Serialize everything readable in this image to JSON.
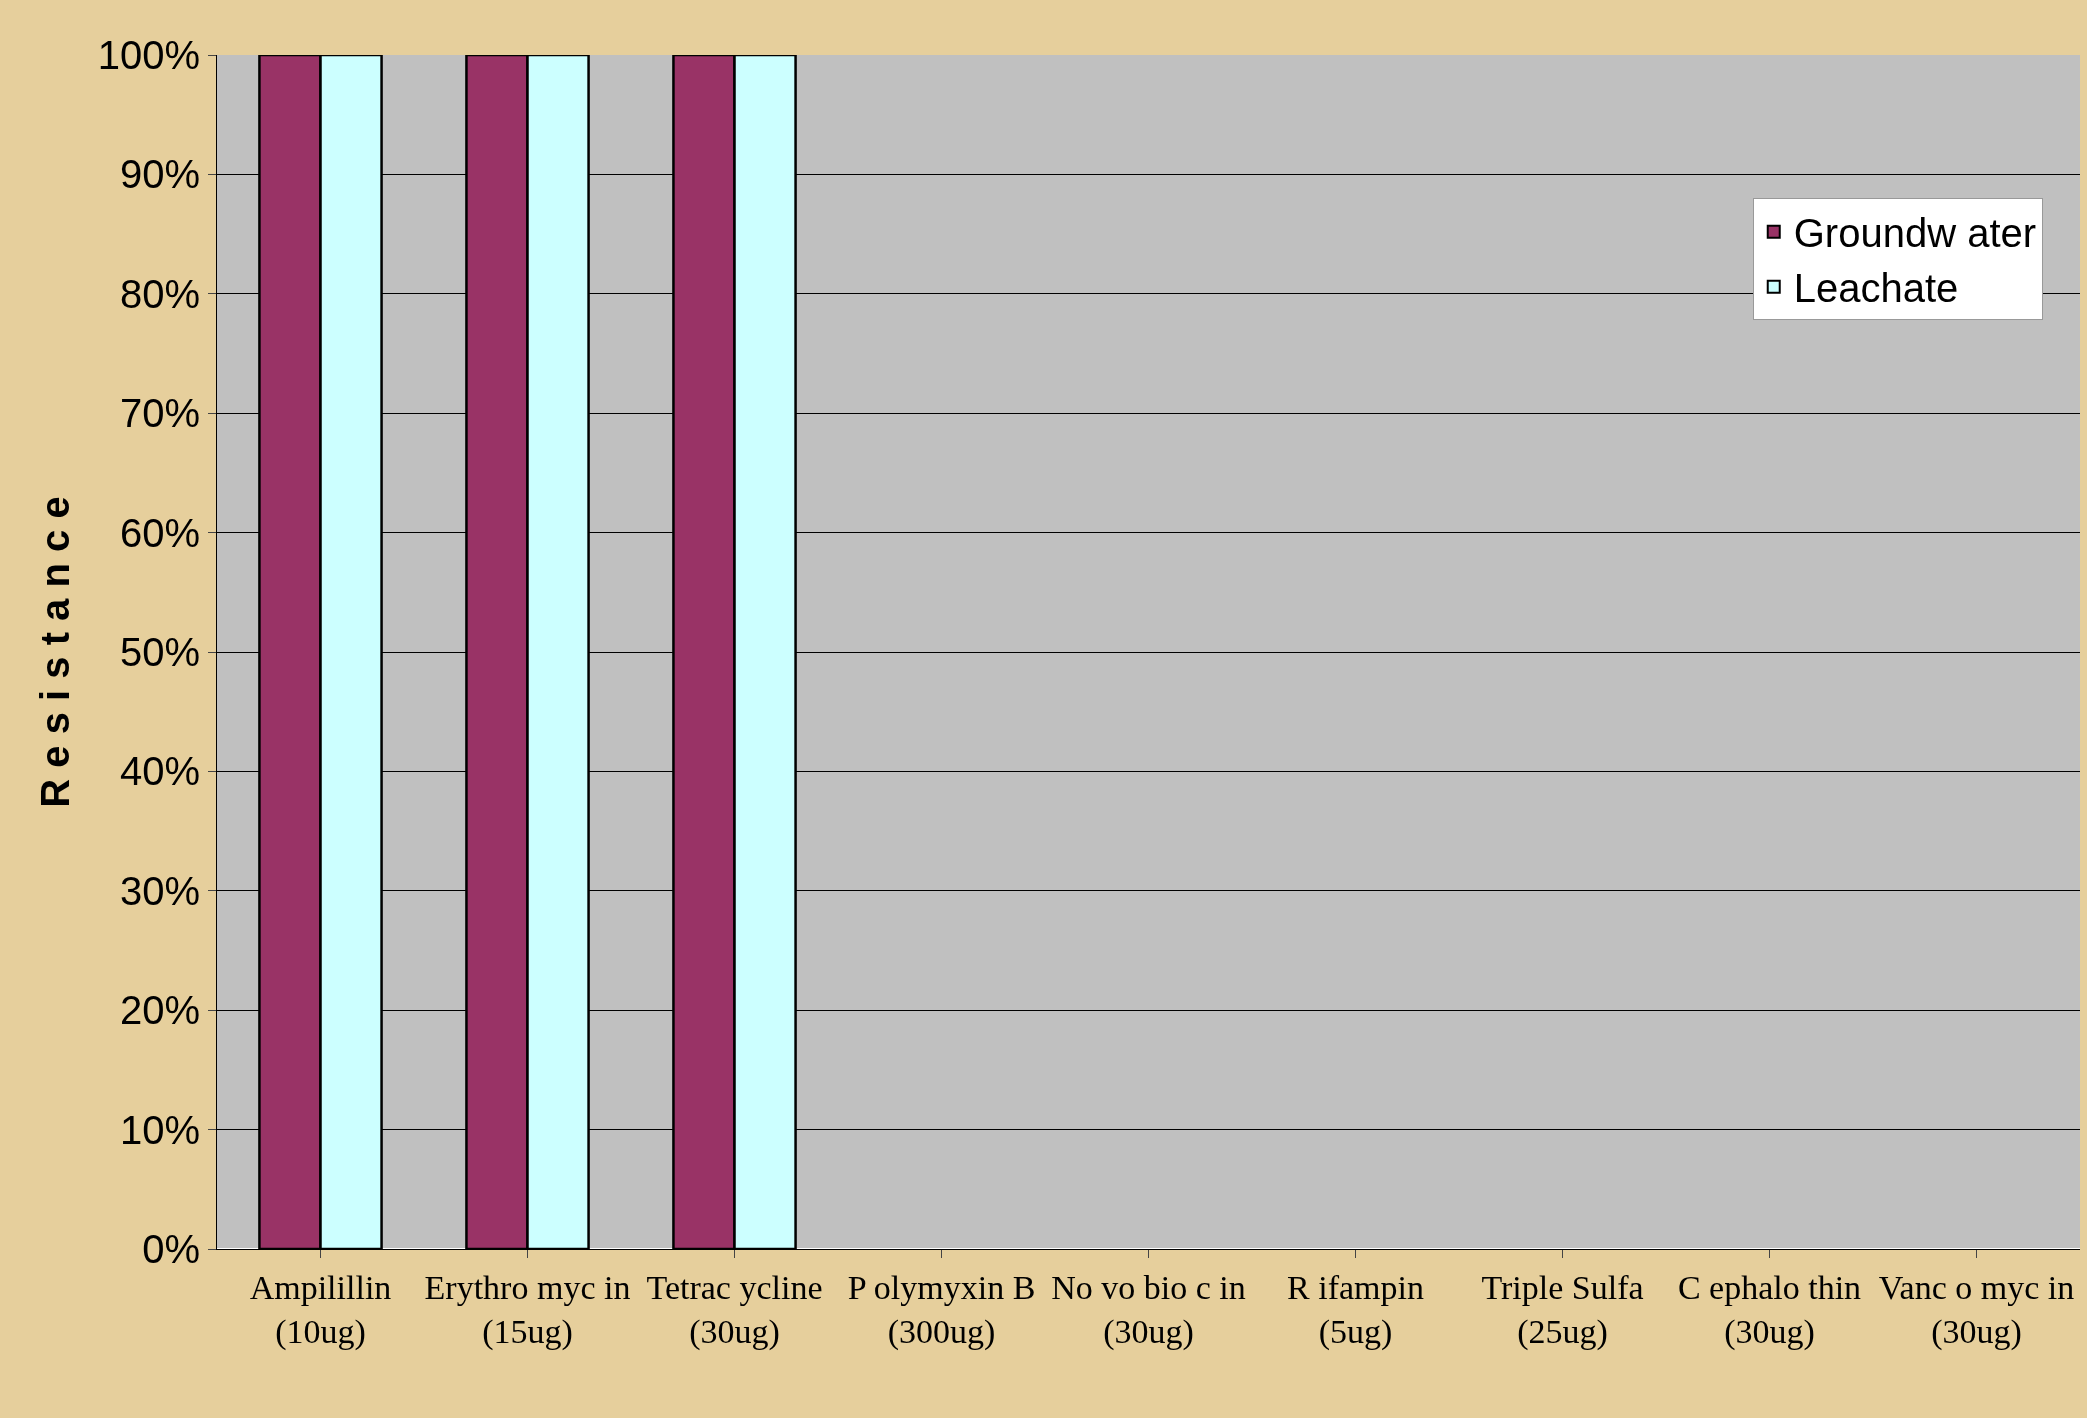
{
  "chart_data": {
    "type": "bar",
    "ylabel": "R e s i s t a n c e",
    "categories": [
      "Ampilillin\n(10ug)",
      "Erythro myc in\n(15ug)",
      "Tetrac ycline\n(30ug)",
      "P olymyxin B\n(300ug)",
      "No vo bio c in\n(30ug)",
      "R ifampin\n(5ug)",
      "Triple Sulfa\n(25ug)",
      "C ephalo thin\n(30ug)",
      "Vanc o myc in\n(30ug)"
    ],
    "series": [
      {
        "name": "Groundw ater",
        "color": "#993366",
        "values": [
          100,
          100,
          100,
          0,
          0,
          0,
          0,
          0,
          0
        ]
      },
      {
        "name": "Leachate",
        "color": "#ccffff",
        "values": [
          100,
          100,
          100,
          0,
          0,
          0,
          0,
          0,
          0
        ]
      }
    ],
    "ylim": [
      0,
      100
    ],
    "yticks": [
      {
        "value": 0,
        "label": "0%"
      },
      {
        "value": 10,
        "label": "10%"
      },
      {
        "value": 20,
        "label": "20%"
      },
      {
        "value": 30,
        "label": "30%"
      },
      {
        "value": 40,
        "label": "40%"
      },
      {
        "value": 50,
        "label": "50%"
      },
      {
        "value": 60,
        "label": "60%"
      },
      {
        "value": 70,
        "label": "70%"
      },
      {
        "value": 80,
        "label": "80%"
      },
      {
        "value": 90,
        "label": "90%"
      },
      {
        "value": 100,
        "label": "100%"
      }
    ],
    "grid": "y",
    "legend": "top right"
  }
}
